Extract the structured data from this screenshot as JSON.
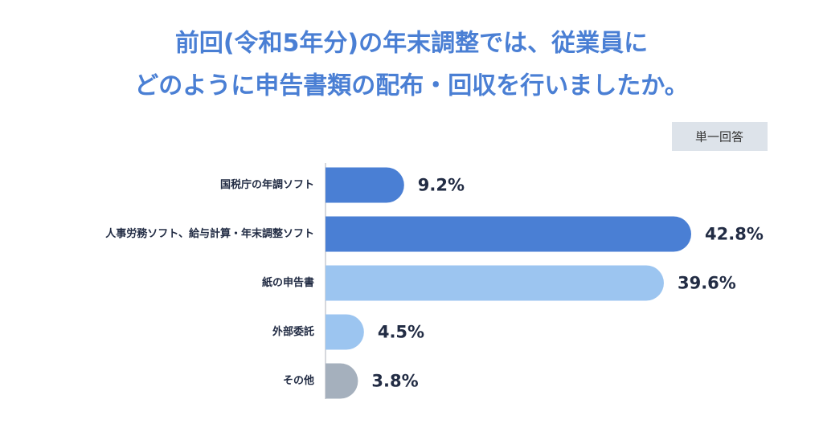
{
  "chart_data": {
    "type": "bar",
    "orientation": "horizontal",
    "title": [
      "前回(令和5年分)の年末調整では、従業員に",
      "どのように申告書類の配布・回収を行いましたか。"
    ],
    "subtitle": "単一回答",
    "categories": [
      "国税庁の年調ソフト",
      "人事労務ソフト、給与計算・年末調整ソフト",
      "紙の申告書",
      "外部委託",
      "その他"
    ],
    "values": [
      9.2,
      42.8,
      39.6,
      4.5,
      3.8
    ],
    "value_labels": [
      "9.2%",
      "42.8%",
      "39.6%",
      "4.5%",
      "3.8%"
    ],
    "colors": [
      "#4a7fd4",
      "#4a7fd4",
      "#9cc5f0",
      "#9cc5f0",
      "#a5b0bd"
    ]
  }
}
